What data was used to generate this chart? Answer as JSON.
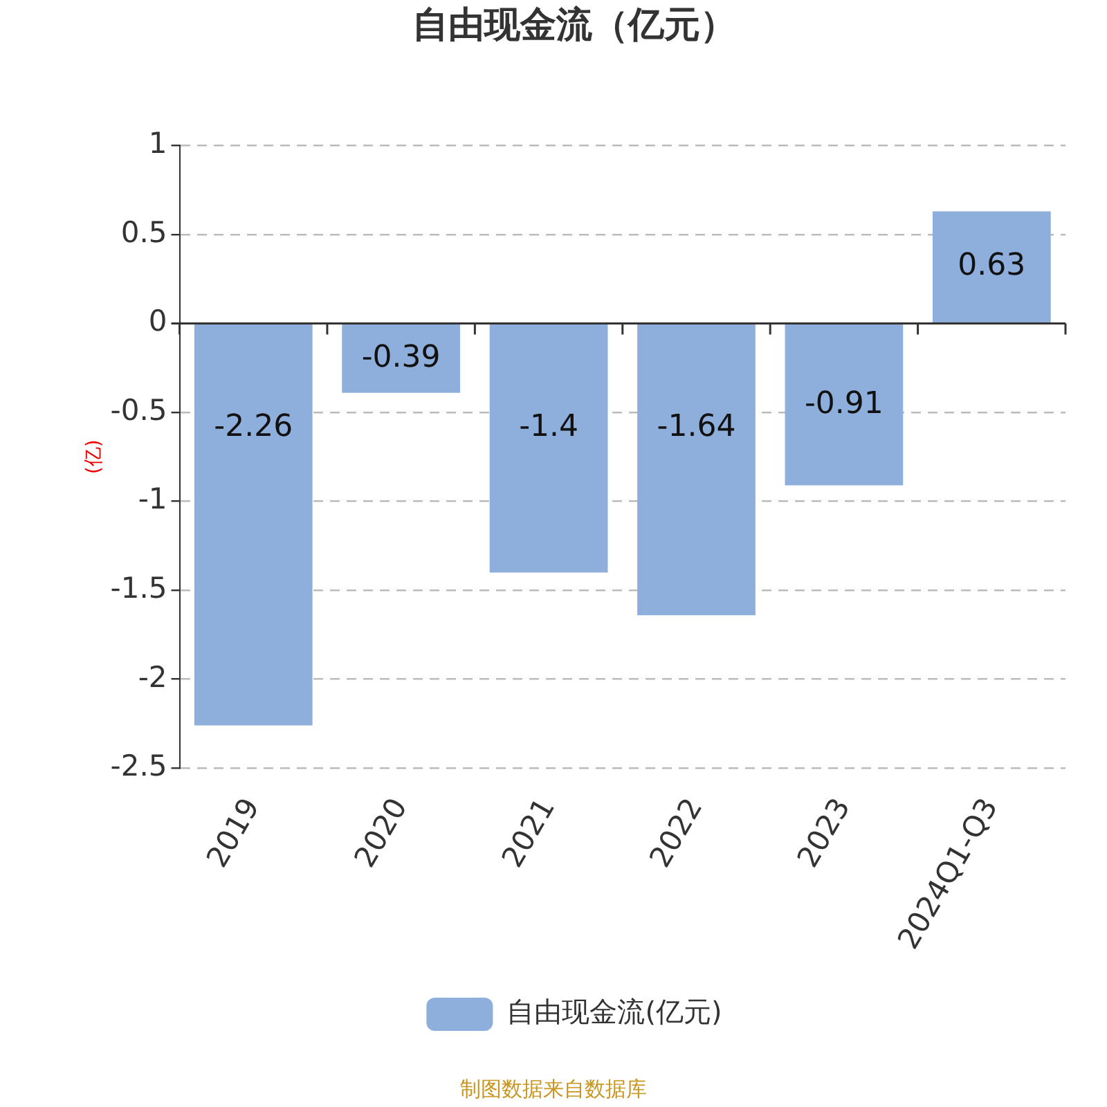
{
  "chart_data": {
    "type": "bar",
    "title": "自由现金流（亿元）",
    "ylabel": "(亿)",
    "categories": [
      "2019",
      "2020",
      "2021",
      "2022",
      "2023",
      "2024Q1-Q3"
    ],
    "series": [
      {
        "name": "自由现金流(亿元)",
        "color": "#8eaedb",
        "values": [
          -2.26,
          -0.39,
          -1.4,
          -1.64,
          -0.91,
          0.63
        ]
      }
    ],
    "ylim": [
      -2.5,
      1
    ],
    "yticks": [
      -2.5,
      -2,
      -1.5,
      -1,
      -0.5,
      0,
      0.5,
      1
    ],
    "grid": "y",
    "legend": "bottom",
    "data_labels": true,
    "annotations": [
      "制图数据来自数据库"
    ]
  }
}
